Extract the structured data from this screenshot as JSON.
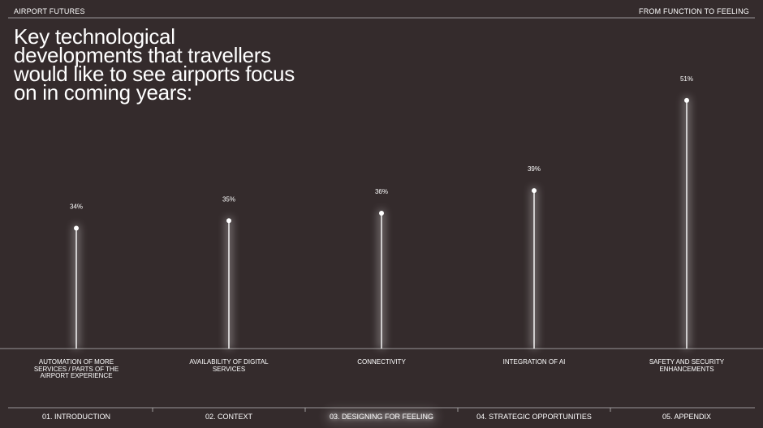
{
  "header": {
    "left": "AIRPORT FUTURES",
    "right": "FROM FUNCTION TO FEELING"
  },
  "chart_data": {
    "type": "lollipop",
    "title": "Key technological developments that travellers would like to see airports focus on in coming years:",
    "categories": [
      "AUTOMATION OF MORE SERVICES / PARTS OF THE AIRPORT EXPERIENCE",
      "AVAILABILITY OF DIGITAL SERVICES",
      "CONNECTIVITY",
      "INTEGRATION OF AI",
      "SAFETY AND SECURITY ENHANCEMENTS"
    ],
    "values": [
      34,
      35,
      36,
      39,
      51
    ],
    "value_labels": [
      "34%",
      "35%",
      "36%",
      "39%",
      "51%"
    ],
    "color": "#ffffff",
    "ylim": [
      18,
      54
    ]
  },
  "nav": {
    "items": [
      "01. INTRODUCTION",
      "02. CONTEXT",
      "03. DESIGNING FOR FEELING",
      "04. STRATEGIC OPPORTUNITIES",
      "05. APPENDIX"
    ],
    "active": 2
  }
}
